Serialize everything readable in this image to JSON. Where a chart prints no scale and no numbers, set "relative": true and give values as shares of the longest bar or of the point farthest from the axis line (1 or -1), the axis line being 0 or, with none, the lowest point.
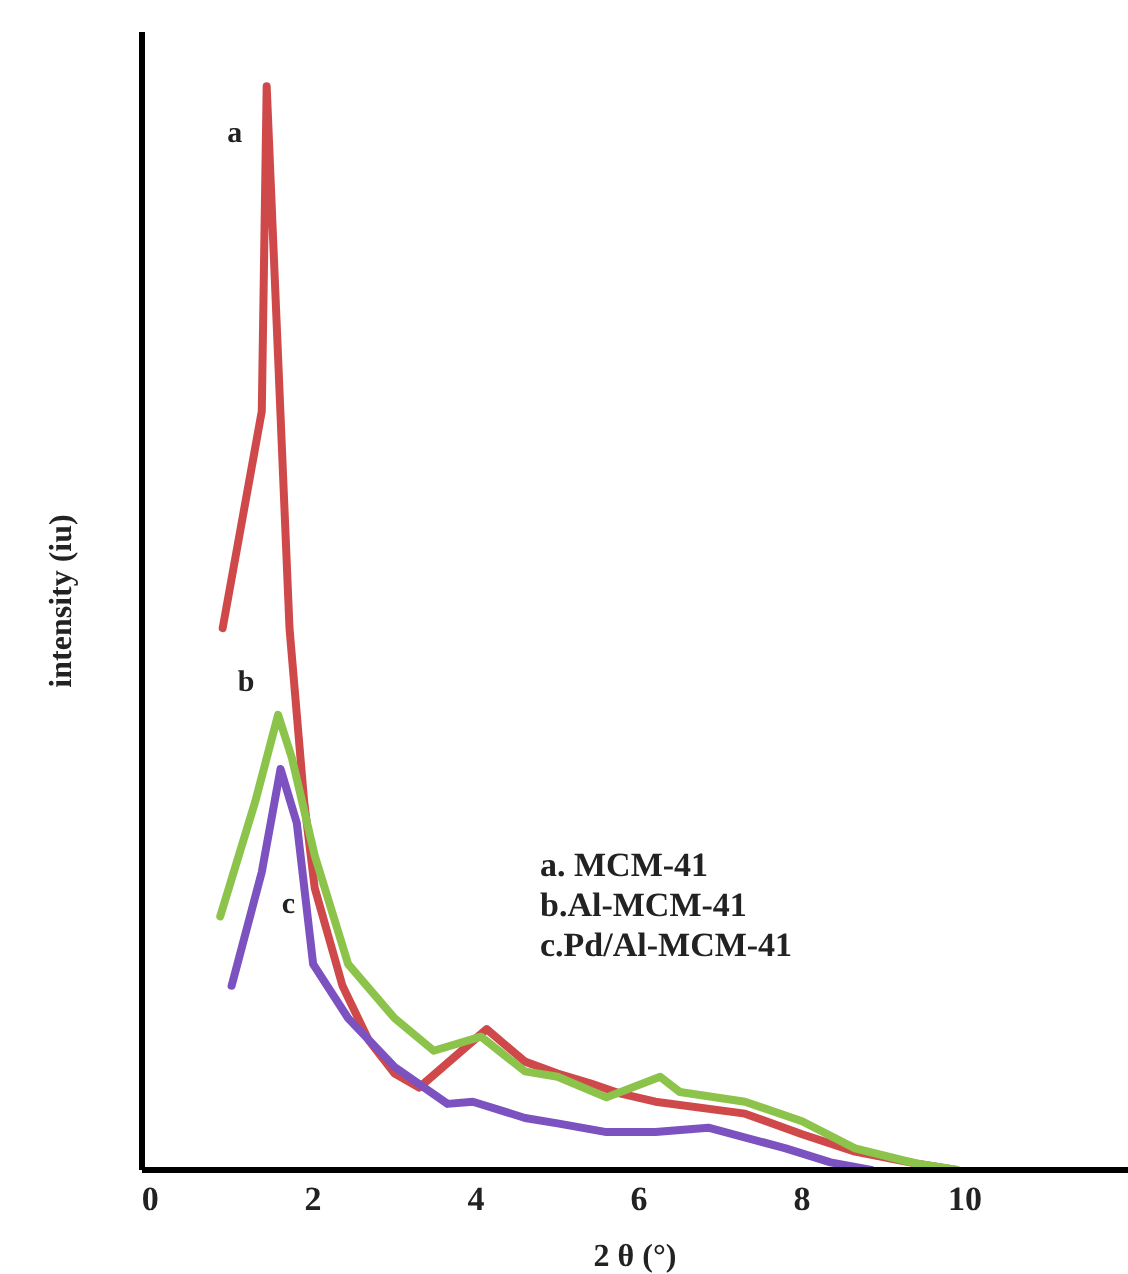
{
  "chart_data": {
    "type": "line",
    "relative": true,
    "xlabel": "2 θ (°)",
    "ylabel": "intensity (iu)",
    "xlim": [
      -0.1,
      12
    ],
    "xticks": [
      0,
      2,
      4,
      6,
      8,
      10
    ],
    "marker": "none",
    "line_style": "solid",
    "series": [
      {
        "color": "#d0494a",
        "x": [
          0.89,
          1.37,
          1.43,
          1.71,
          1.89,
          2.02,
          2.36,
          2.68,
          3.0,
          3.3,
          4.13,
          4.6,
          5.0,
          5.4,
          5.75,
          6.2,
          7.3,
          8.0,
          8.65,
          9.4,
          9.9
        ],
        "values": [
          0.5,
          0.7,
          1.0,
          0.5,
          0.34,
          0.26,
          0.17,
          0.12,
          0.089,
          0.076,
          0.13,
          0.1,
          0.089,
          0.08,
          0.071,
          0.063,
          0.052,
          0.033,
          0.017,
          0.006,
          0
        ]
      },
      {
        "color": "#8cc34a",
        "x": [
          0.86,
          1.29,
          1.57,
          1.74,
          2.02,
          2.43,
          3.0,
          3.48,
          4.06,
          4.6,
          5.0,
          5.6,
          6.26,
          6.5,
          7.3,
          8.0,
          8.65,
          9.4,
          9.9
        ],
        "values": [
          0.234,
          0.34,
          0.42,
          0.38,
          0.29,
          0.19,
          0.14,
          0.11,
          0.123,
          0.091,
          0.086,
          0.067,
          0.086,
          0.072,
          0.063,
          0.045,
          0.02,
          0.006,
          0
        ]
      },
      {
        "color": "#7b52c0",
        "x": [
          1.0,
          1.37,
          1.6,
          1.8,
          2.0,
          2.43,
          3.0,
          3.65,
          3.96,
          4.6,
          5.0,
          5.6,
          6.2,
          6.85,
          7.8,
          8.35,
          8.85
        ],
        "values": [
          0.17,
          0.275,
          0.37,
          0.32,
          0.19,
          0.14,
          0.095,
          0.061,
          0.063,
          0.048,
          0.043,
          0.035,
          0.035,
          0.039,
          0.02,
          0.007,
          0
        ]
      }
    ],
    "annotations": [
      "a",
      "b",
      "c",
      "a. MCM-41",
      "b.Al-MCM-41",
      "c.Pd/Al-MCM-41"
    ]
  }
}
